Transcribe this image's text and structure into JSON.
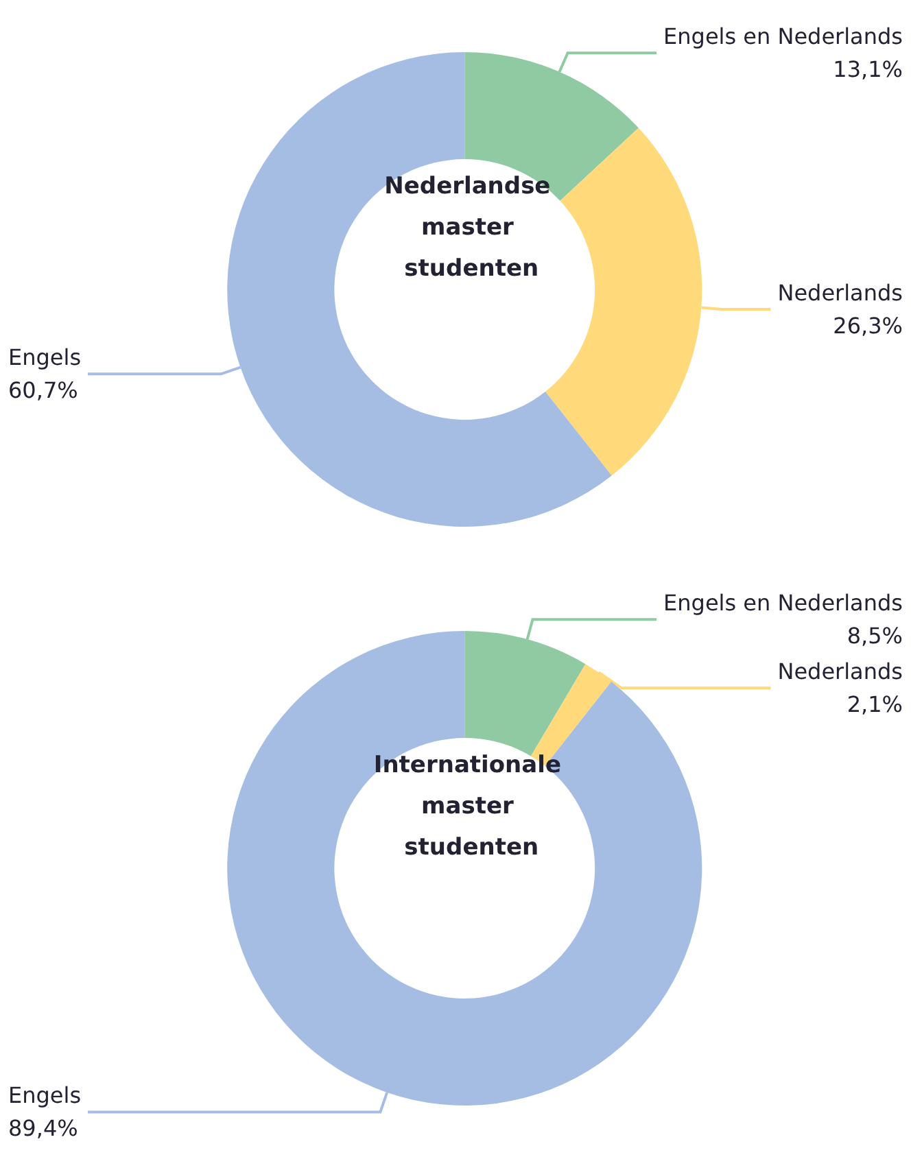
{
  "chart_data": [
    {
      "type": "donut",
      "title": "Nederlandse master studenten",
      "categories": [
        "Engels en Nederlands",
        "Nederlands",
        "Engels"
      ],
      "values": [
        13.1,
        26.3,
        60.7
      ],
      "value_labels": [
        "13,1%",
        "26,3%",
        "60,7%"
      ],
      "colors": [
        "#8fcaa3",
        "#ffd97a",
        "#a5bde3"
      ]
    },
    {
      "type": "donut",
      "title": "Internationale master studenten",
      "categories": [
        "Engels en Nederlands",
        "Nederlands",
        "Engels"
      ],
      "values": [
        8.5,
        2.1,
        89.4
      ],
      "value_labels": [
        "8,5%",
        "2,1%",
        "89,4%"
      ],
      "colors": [
        "#8fcaa3",
        "#ffd97a",
        "#a5bde3"
      ]
    }
  ]
}
